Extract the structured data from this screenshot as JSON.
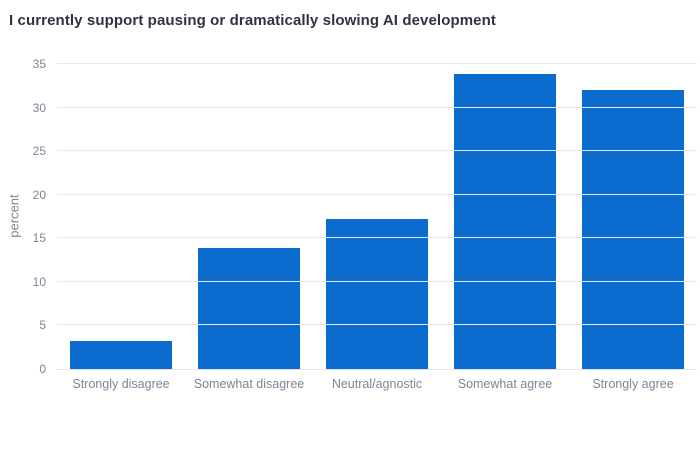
{
  "chart_data": {
    "type": "bar",
    "title": "I currently support pausing or dramatically slowing AI development",
    "categories": [
      "Strongly disagree",
      "Somewhat disagree",
      "Neutral/agnostic",
      "Somewhat agree",
      "Strongly agree"
    ],
    "values": [
      3.2,
      13.9,
      17.2,
      33.8,
      32.0
    ],
    "xlabel": "",
    "ylabel": "percent",
    "ylim": [
      0,
      35
    ],
    "yticks": [
      0,
      5,
      10,
      15,
      20,
      25,
      30,
      35
    ],
    "grid": true,
    "legend": false,
    "colors": {
      "bar": "#0b6bce",
      "title": "#2e3345",
      "axis_text": "#7e8494",
      "x_tick_text": "#7d8595",
      "gridline": "#e6ebf3",
      "baseline": "#dfe5ee",
      "background": "#ffffff"
    }
  }
}
